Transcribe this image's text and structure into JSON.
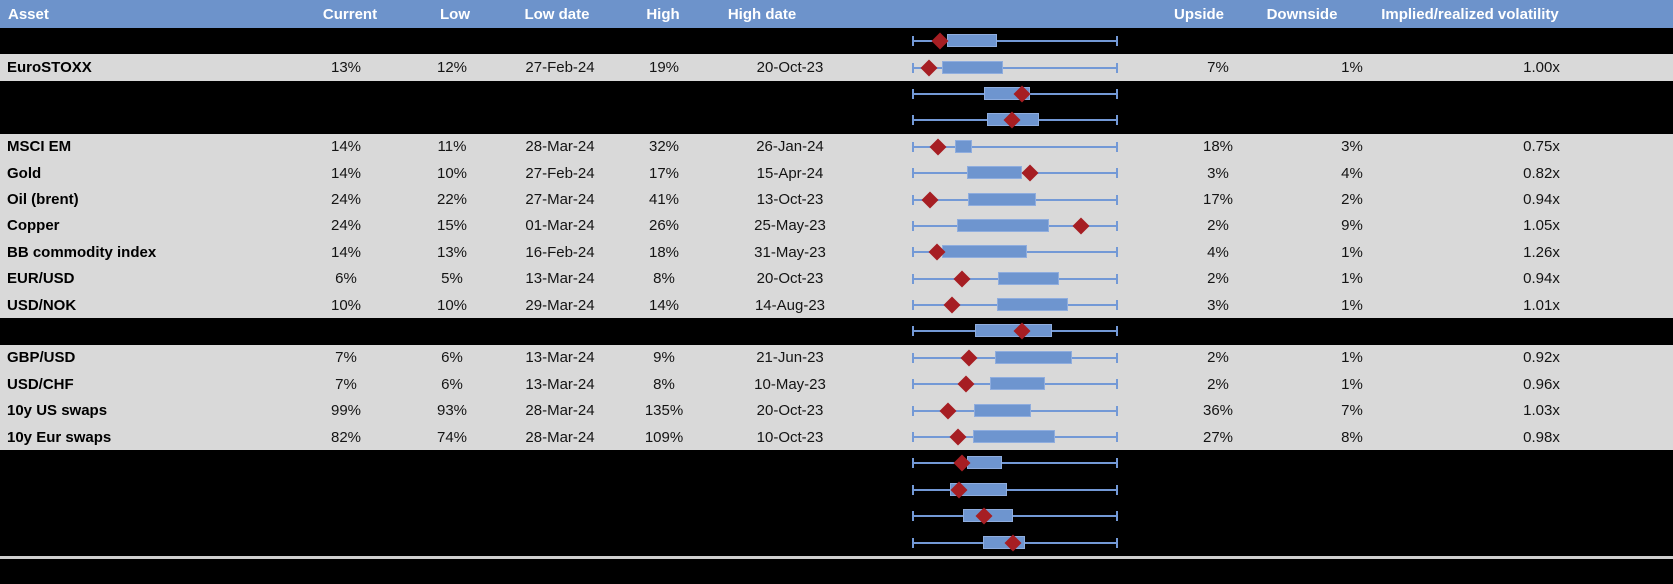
{
  "columns": {
    "asset": "Asset",
    "current": "Current",
    "low": "Low",
    "low_date": "Low date",
    "high": "High",
    "high_date": "High date",
    "chart": "",
    "upside": "Upside",
    "downside": "Downside",
    "impl_real": "Implied/realized volatility"
  },
  "colors": {
    "header_bg": "#6D93CB",
    "header_text": "#FFFFFF",
    "row_bg": "#D9D9D9",
    "hidden_row_bg": "#000000",
    "text": "#141414",
    "asset_text": "#000000",
    "box_fill": "#6E95CF",
    "box_border": "#8FADDE",
    "whisker": "#7399D6",
    "marker": "#A61E23",
    "separator": "#CFCFCF"
  },
  "boxplot_legend": {
    "whisker_range": "low-to-high 52-week volatility range",
    "marker": "current level"
  },
  "rows": [
    {
      "hidden": true,
      "plot": {
        "box": [
          0.165,
          0.41
        ],
        "marker": 0.132
      }
    },
    {
      "hidden": false,
      "asset": "EuroSTOXX",
      "current": "13%",
      "low": "12%",
      "low_date": "27-Feb-24",
      "high": "19%",
      "high_date": "20-Oct-23",
      "upside": "7%",
      "downside": "1%",
      "impl_real": "1.00x",
      "plot": {
        "box": [
          0.142,
          0.441
        ],
        "marker": 0.078
      }
    },
    {
      "hidden": true,
      "plot": {
        "box": [
          0.348,
          0.574
        ],
        "marker": 0.534
      }
    },
    {
      "hidden": true,
      "plot": {
        "box": [
          0.363,
          0.618
        ],
        "marker": 0.485
      }
    },
    {
      "hidden": false,
      "asset": "MSCI EM",
      "current": "14%",
      "low": "11%",
      "low_date": "28-Mar-24",
      "high": "32%",
      "high_date": "26-Jan-24",
      "upside": "18%",
      "downside": "3%",
      "impl_real": "0.75x",
      "plot": {
        "box": [
          0.206,
          0.291
        ],
        "marker": 0.121
      }
    },
    {
      "hidden": false,
      "asset": "Gold",
      "current": "14%",
      "low": "10%",
      "low_date": "27-Feb-24",
      "high": "17%",
      "high_date": "15-Apr-24",
      "upside": "3%",
      "downside": "4%",
      "impl_real": "0.82x",
      "plot": {
        "box": [
          0.263,
          0.534
        ],
        "marker": 0.574
      }
    },
    {
      "hidden": false,
      "asset": "Oil (brent)",
      "current": "24%",
      "low": "22%",
      "low_date": "27-Mar-24",
      "high": "41%",
      "high_date": "13-Oct-23",
      "upside": "17%",
      "downside": "2%",
      "impl_real": "0.94x",
      "plot": {
        "box": [
          0.268,
          0.602
        ],
        "marker": 0.083
      }
    },
    {
      "hidden": false,
      "asset": "Copper",
      "current": "24%",
      "low": "15%",
      "low_date": "01-Mar-24",
      "high": "26%",
      "high_date": "25-May-23",
      "upside": "2%",
      "downside": "9%",
      "impl_real": "1.05x",
      "plot": {
        "box": [
          0.216,
          0.668
        ],
        "marker": 0.824
      }
    },
    {
      "hidden": false,
      "asset": "BB commodity index",
      "current": "14%",
      "low": "13%",
      "low_date": "16-Feb-24",
      "high": "18%",
      "high_date": "31-May-23",
      "upside": "4%",
      "downside": "1%",
      "impl_real": "1.26x",
      "plot": {
        "box": [
          0.141,
          0.557
        ],
        "marker": 0.116
      }
    },
    {
      "hidden": false,
      "asset": "EUR/USD",
      "current": "6%",
      "low": "5%",
      "low_date": "13-Mar-24",
      "high": "8%",
      "high_date": "20-Oct-23",
      "upside": "2%",
      "downside": "1%",
      "impl_real": "0.94x",
      "plot": {
        "box": [
          0.418,
          0.716
        ],
        "marker": 0.24
      }
    },
    {
      "hidden": false,
      "asset": "USD/NOK",
      "current": "10%",
      "low": "10%",
      "low_date": "29-Mar-24",
      "high": "14%",
      "high_date": "14-Aug-23",
      "upside": "3%",
      "downside": "1%",
      "impl_real": "1.01x",
      "plot": {
        "box": [
          0.413,
          0.761
        ],
        "marker": 0.19
      }
    },
    {
      "hidden": true,
      "plot": {
        "box": [
          0.304,
          0.68
        ],
        "marker": 0.533
      }
    },
    {
      "hidden": false,
      "asset": "GBP/USD",
      "current": "7%",
      "low": "6%",
      "low_date": "13-Mar-24",
      "high": "9%",
      "high_date": "21-Jun-23",
      "upside": "2%",
      "downside": "1%",
      "impl_real": "0.92x",
      "plot": {
        "box": [
          0.404,
          0.782
        ],
        "marker": 0.274
      }
    },
    {
      "hidden": false,
      "asset": "USD/CHF",
      "current": "7%",
      "low": "6%",
      "low_date": "13-Mar-24",
      "high": "8%",
      "high_date": "10-May-23",
      "upside": "2%",
      "downside": "1%",
      "impl_real": "0.96x",
      "plot": {
        "box": [
          0.379,
          0.648
        ],
        "marker": 0.26
      }
    },
    {
      "hidden": false,
      "asset": "10y US swaps",
      "current": "99%",
      "low": "93%",
      "low_date": "28-Mar-24",
      "high": "135%",
      "high_date": "20-Oct-23",
      "upside": "36%",
      "downside": "7%",
      "impl_real": "1.03x",
      "plot": {
        "box": [
          0.3,
          0.58
        ],
        "marker": 0.171
      }
    },
    {
      "hidden": false,
      "asset": "10y Eur swaps",
      "current": "82%",
      "low": "74%",
      "low_date": "28-Mar-24",
      "high": "109%",
      "high_date": "10-Oct-23",
      "upside": "27%",
      "downside": "8%",
      "impl_real": "0.98x",
      "plot": {
        "box": [
          0.295,
          0.696
        ],
        "marker": 0.222
      }
    },
    {
      "hidden": true,
      "plot": {
        "box": [
          0.263,
          0.435
        ],
        "marker": 0.239
      }
    },
    {
      "hidden": true,
      "plot": {
        "box": [
          0.181,
          0.462
        ],
        "marker": 0.225
      }
    },
    {
      "hidden": true,
      "plot": {
        "box": [
          0.247,
          0.492
        ],
        "marker": 0.348
      }
    },
    {
      "hidden": true,
      "plot": {
        "box": [
          0.345,
          0.549
        ],
        "marker": 0.489
      }
    }
  ]
}
